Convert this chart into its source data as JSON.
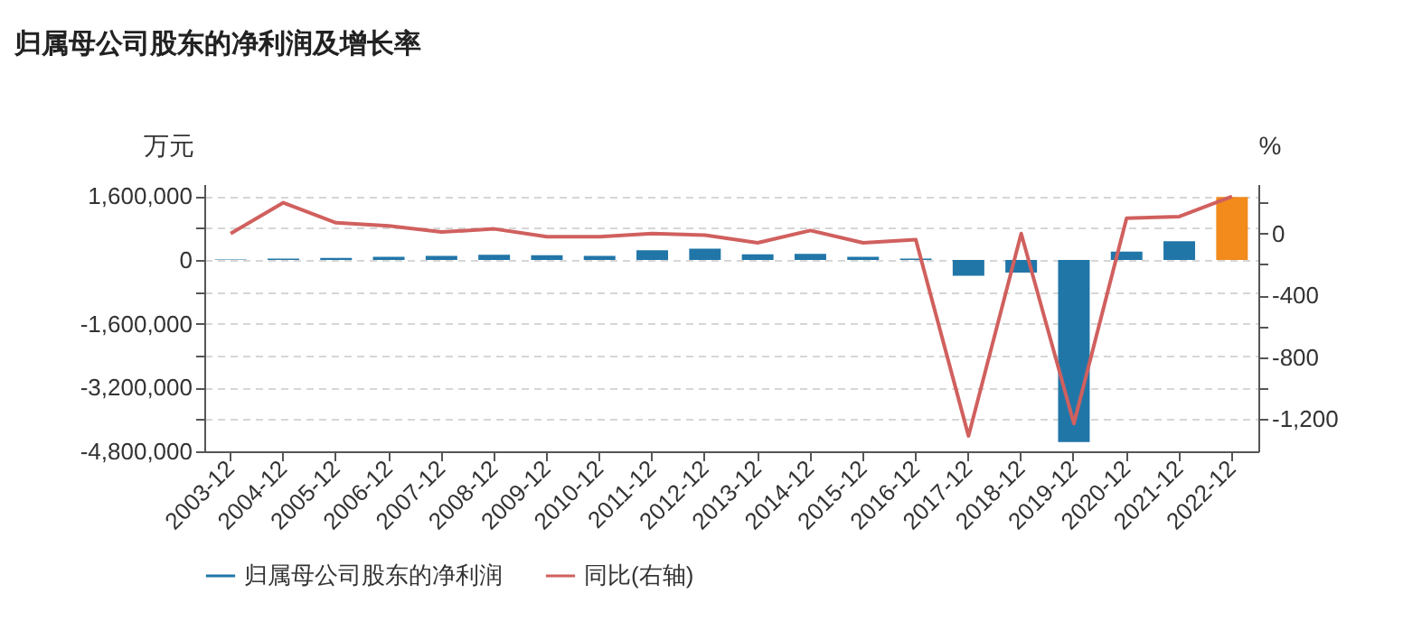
{
  "chart_data": {
    "type": "bar",
    "title": "归属母公司股东的净利润及增长率",
    "ylabel": "万元",
    "y2label": "%",
    "categories": [
      "2003-12",
      "2004-12",
      "2005-12",
      "2006-12",
      "2007-12",
      "2008-12",
      "2009-12",
      "2010-12",
      "2011-12",
      "2012-12",
      "2013-12",
      "2014-12",
      "2015-12",
      "2016-12",
      "2017-12",
      "2018-12",
      "2019-12",
      "2020-12",
      "2021-12",
      "2022-12"
    ],
    "series": [
      {
        "name": "归属母公司股东的净利润",
        "color": "#2176a8",
        "colors": [
          "#2176a8",
          "#2176a8",
          "#2176a8",
          "#2176a8",
          "#2176a8",
          "#2176a8",
          "#2176a8",
          "#2176a8",
          "#2176a8",
          "#2176a8",
          "#2176a8",
          "#2176a8",
          "#2176a8",
          "#2176a8",
          "#2176a8",
          "#2176a8",
          "#2176a8",
          "#2176a8",
          "#2176a8",
          "#f28a1c"
        ],
        "values": [
          10000,
          30000,
          50000,
          80000,
          100000,
          130000,
          120000,
          100000,
          240000,
          280000,
          140000,
          150000,
          80000,
          30000,
          -400000,
          -320000,
          -4570000,
          210000,
          470000,
          1580000
        ]
      },
      {
        "name": "同比(右轴)",
        "type": "line",
        "axis": "y2",
        "color": "#d0605e",
        "values": [
          0,
          200,
          70,
          50,
          10,
          30,
          -20,
          -20,
          0,
          -10,
          -60,
          20,
          -60,
          -40,
          -1310,
          0,
          -1230,
          100,
          110,
          240
        ]
      }
    ],
    "ylim": [
      -4800000,
      1900000
    ],
    "yticks": [
      {
        "value": -4800000,
        "label": "-4,800,000"
      },
      {
        "value": -4000000,
        "label": null
      },
      {
        "value": -3200000,
        "label": "-3,200,000"
      },
      {
        "value": -2400000,
        "label": null
      },
      {
        "value": -1600000,
        "label": "-1,600,000"
      },
      {
        "value": -800000,
        "label": null
      },
      {
        "value": 0,
        "label": "0"
      },
      {
        "value": 800000,
        "label": null
      },
      {
        "value": 1600000,
        "label": "1,600,000"
      }
    ],
    "y2lim": [
      -1410,
      320
    ],
    "y2ticks": [
      {
        "value": -1200,
        "label": "-1,200"
      },
      {
        "value": -1000,
        "label": null
      },
      {
        "value": -800,
        "label": "-800"
      },
      {
        "value": -600,
        "label": null
      },
      {
        "value": -400,
        "label": "-400"
      },
      {
        "value": -200,
        "label": null
      },
      {
        "value": 0,
        "label": "0"
      },
      {
        "value": 200,
        "label": null
      }
    ],
    "grid": "y",
    "legend": "bottom"
  }
}
